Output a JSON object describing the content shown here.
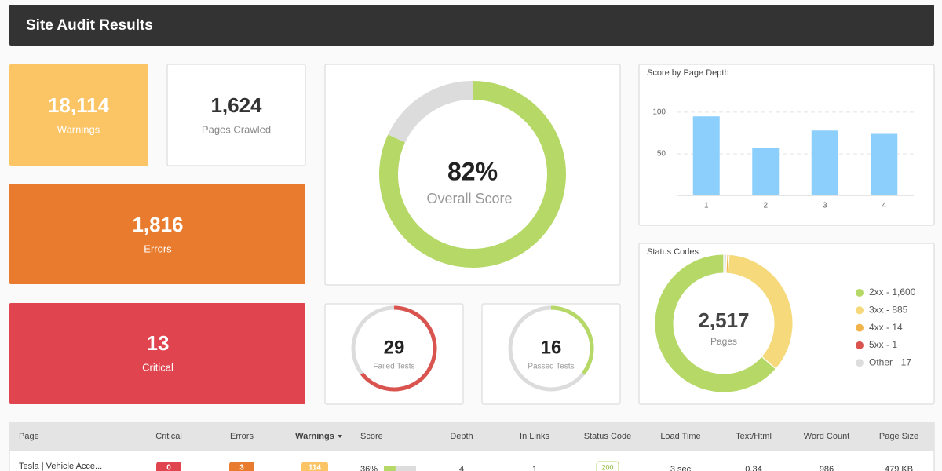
{
  "header": {
    "title": "Site Audit Results"
  },
  "cards": [
    {
      "value": "18,114",
      "label": "Warnings"
    },
    {
      "value": "1,624",
      "label": "Pages Crawled"
    },
    {
      "value": "1,816",
      "label": "Errors"
    },
    {
      "value": "13",
      "label": "Critical"
    }
  ],
  "overall_score": {
    "value": 82,
    "value_label": "82%",
    "label": "Overall Score",
    "max": 100,
    "color": "#b5d866"
  },
  "tests": [
    {
      "value": 29,
      "label": "Failed Tests",
      "color": "#d9534f"
    },
    {
      "value": 16,
      "label": "Passed Tests",
      "color": "#b5d866"
    }
  ],
  "depth_chart": {
    "type": "bar",
    "title": "Score by Page Depth",
    "categories": [
      "1",
      "2",
      "3",
      "4"
    ],
    "values": [
      95,
      57,
      78,
      74
    ],
    "color": "#8dcffc",
    "ylim": [
      0,
      115
    ],
    "yticks": [
      50,
      100
    ],
    "grid": true
  },
  "status_codes": {
    "type": "donut",
    "title": "Status Codes",
    "total": "2,517",
    "total_label": "Pages",
    "labels": [
      "2xx - 1,600",
      "3xx - 885",
      "4xx - 14",
      "5xx - 1",
      "Other - 17"
    ],
    "values": [
      1600,
      885,
      14,
      1,
      17
    ],
    "colors": [
      "#b5d866",
      "#f5d97a",
      "#f0b44a",
      "#d9534f",
      "#dddddd"
    ]
  },
  "table": {
    "columns": [
      "Page",
      "Critical",
      "Errors",
      "Warnings",
      "Score",
      "Depth",
      "In Links",
      "Status Code",
      "Load Time",
      "Text/Html",
      "Word Count",
      "Page Size"
    ],
    "rows": [
      {
        "page": "Tesla | Vehicle Acce...",
        "critical": 0,
        "errors": 3,
        "warnings": 114,
        "score": {
          "value": 36,
          "label": "36%"
        },
        "depth": 4,
        "in_links": 1,
        "status": 200,
        "load_time": "3 sec",
        "text_html": 0.34,
        "word_count": 986,
        "page_size": "479 KB"
      }
    ]
  }
}
